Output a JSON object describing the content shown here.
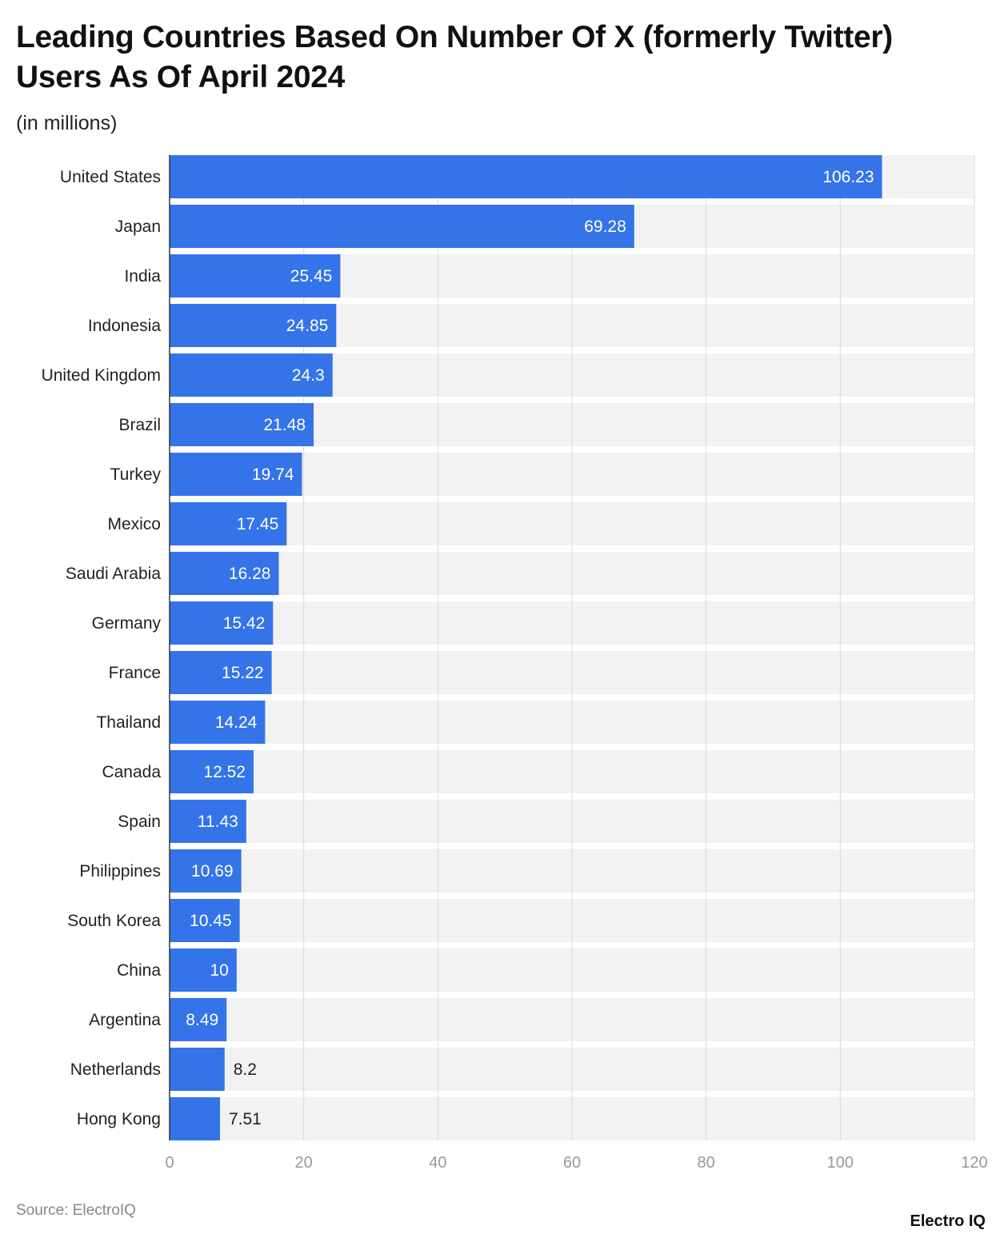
{
  "chart_data": {
    "type": "bar",
    "orientation": "horizontal",
    "title": "Leading Countries Based On Number Of X (formerly Twitter) Users As Of April 2024",
    "subtitle": "(in millions)",
    "xlabel": "",
    "ylabel": "",
    "xlim": [
      0,
      120
    ],
    "xticks": [
      0,
      20,
      40,
      60,
      80,
      100,
      120
    ],
    "grid": true,
    "categories": [
      "United States",
      "Japan",
      "India",
      "Indonesia",
      "United Kingdom",
      "Brazil",
      "Turkey",
      "Mexico",
      "Saudi Arabia",
      "Germany",
      "France",
      "Thailand",
      "Canada",
      "Spain",
      "Philippines",
      "South Korea",
      "China",
      "Argentina",
      "Netherlands",
      "Hong Kong"
    ],
    "values": [
      106.23,
      69.28,
      25.45,
      24.85,
      24.3,
      21.48,
      19.74,
      17.45,
      16.28,
      15.42,
      15.22,
      14.24,
      12.52,
      11.43,
      10.69,
      10.45,
      10,
      8.49,
      8.2,
      7.51
    ],
    "value_labels": [
      "106.23",
      "69.28",
      "25.45",
      "24.85",
      "24.3",
      "21.48",
      "19.74",
      "17.45",
      "16.28",
      "15.42",
      "15.22",
      "14.24",
      "12.52",
      "11.43",
      "10.69",
      "10.45",
      "10",
      "8.49",
      "8.2",
      "7.51"
    ],
    "colors": {
      "bar": "#3474e8",
      "band": "#f2f2f2",
      "grid": "#d9d9d9"
    }
  },
  "source": "Source: ElectroIQ",
  "logo": "Electro IQ"
}
